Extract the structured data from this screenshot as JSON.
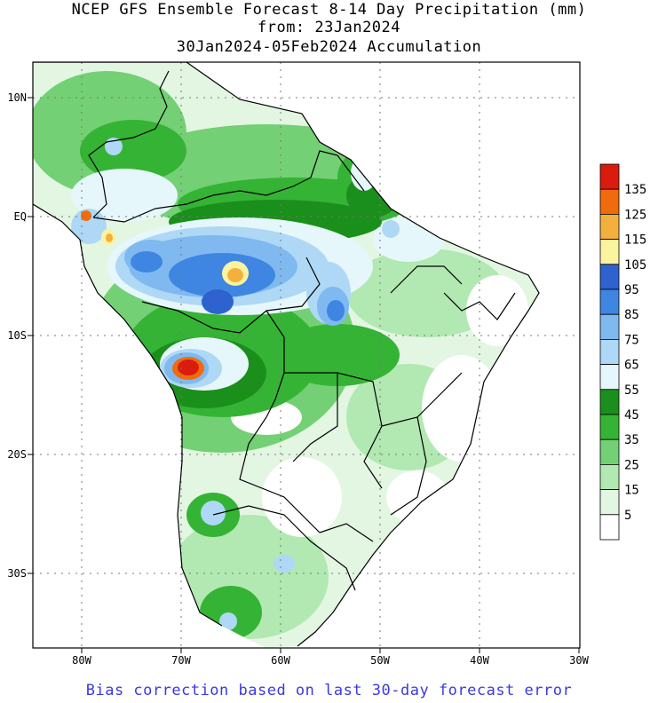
{
  "title": {
    "line1": "NCEP GFS Ensemble Forecast 8-14 Day Precipitation (mm)",
    "line2": "from: 23Jan2024",
    "line3": "30Jan2024-05Feb2024 Accumulation"
  },
  "footer": "Bias correction based on last 30-day forecast error",
  "map": {
    "lat_labels": [
      "10N",
      "EQ",
      "10S",
      "20S",
      "30S"
    ],
    "lon_labels": [
      "80W",
      "70W",
      "60W",
      "50W",
      "40W",
      "30W"
    ]
  },
  "legend": {
    "labels": [
      "135",
      "125",
      "115",
      "105",
      "95",
      "85",
      "75",
      "65",
      "55",
      "45",
      "35",
      "25",
      "15",
      "5"
    ],
    "colors": [
      "#d91c0e",
      "#f06b0c",
      "#f4b03c",
      "#fbf3a0",
      "#2e62cf",
      "#3f86e3",
      "#7fb9f0",
      "#aed8f5",
      "#e6f7fb",
      "#1b8f1b",
      "#35b335",
      "#74d074",
      "#b2e8b2",
      "#e2f6e2",
      "#ffffff"
    ]
  }
}
